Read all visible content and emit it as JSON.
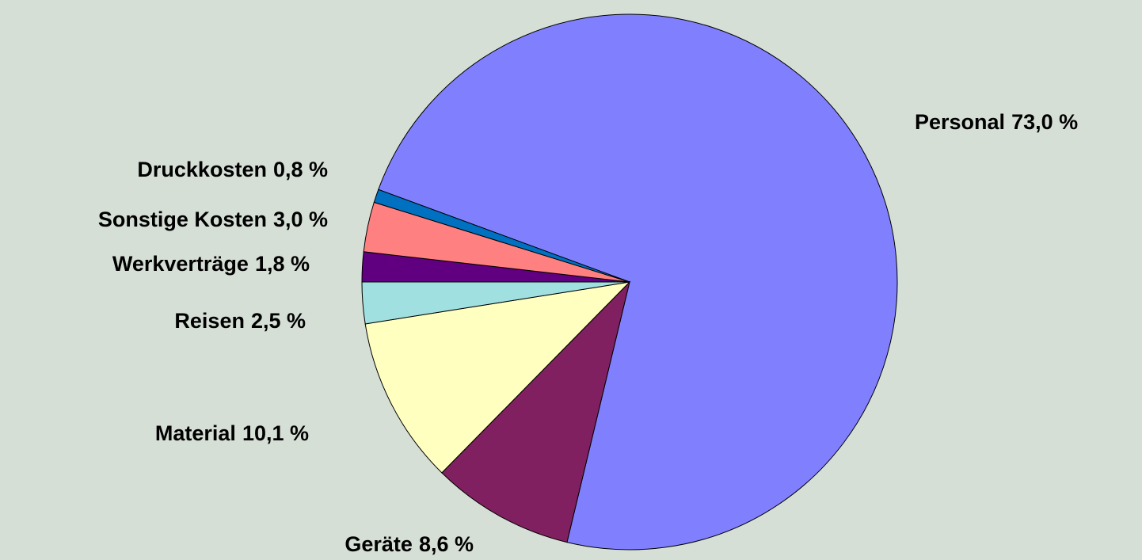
{
  "chart_data": {
    "type": "pie",
    "categories": [
      "Personal",
      "Geräte",
      "Material",
      "Reisen",
      "Werkverträge",
      "Sonstige Kosten",
      "Druckkosten"
    ],
    "values": [
      73.0,
      8.6,
      10.1,
      2.5,
      1.8,
      3.0,
      0.8
    ],
    "value_labels": [
      "73,0 %",
      "8,6 %",
      "10,1 %",
      "2,5 %",
      "1,8 %",
      "3,0 %",
      "0,8 %"
    ],
    "colors": [
      "#8080ff",
      "#802060",
      "#ffffc0",
      "#a0e0e0",
      "#600080",
      "#ff8080",
      "#0070c0"
    ]
  }
}
